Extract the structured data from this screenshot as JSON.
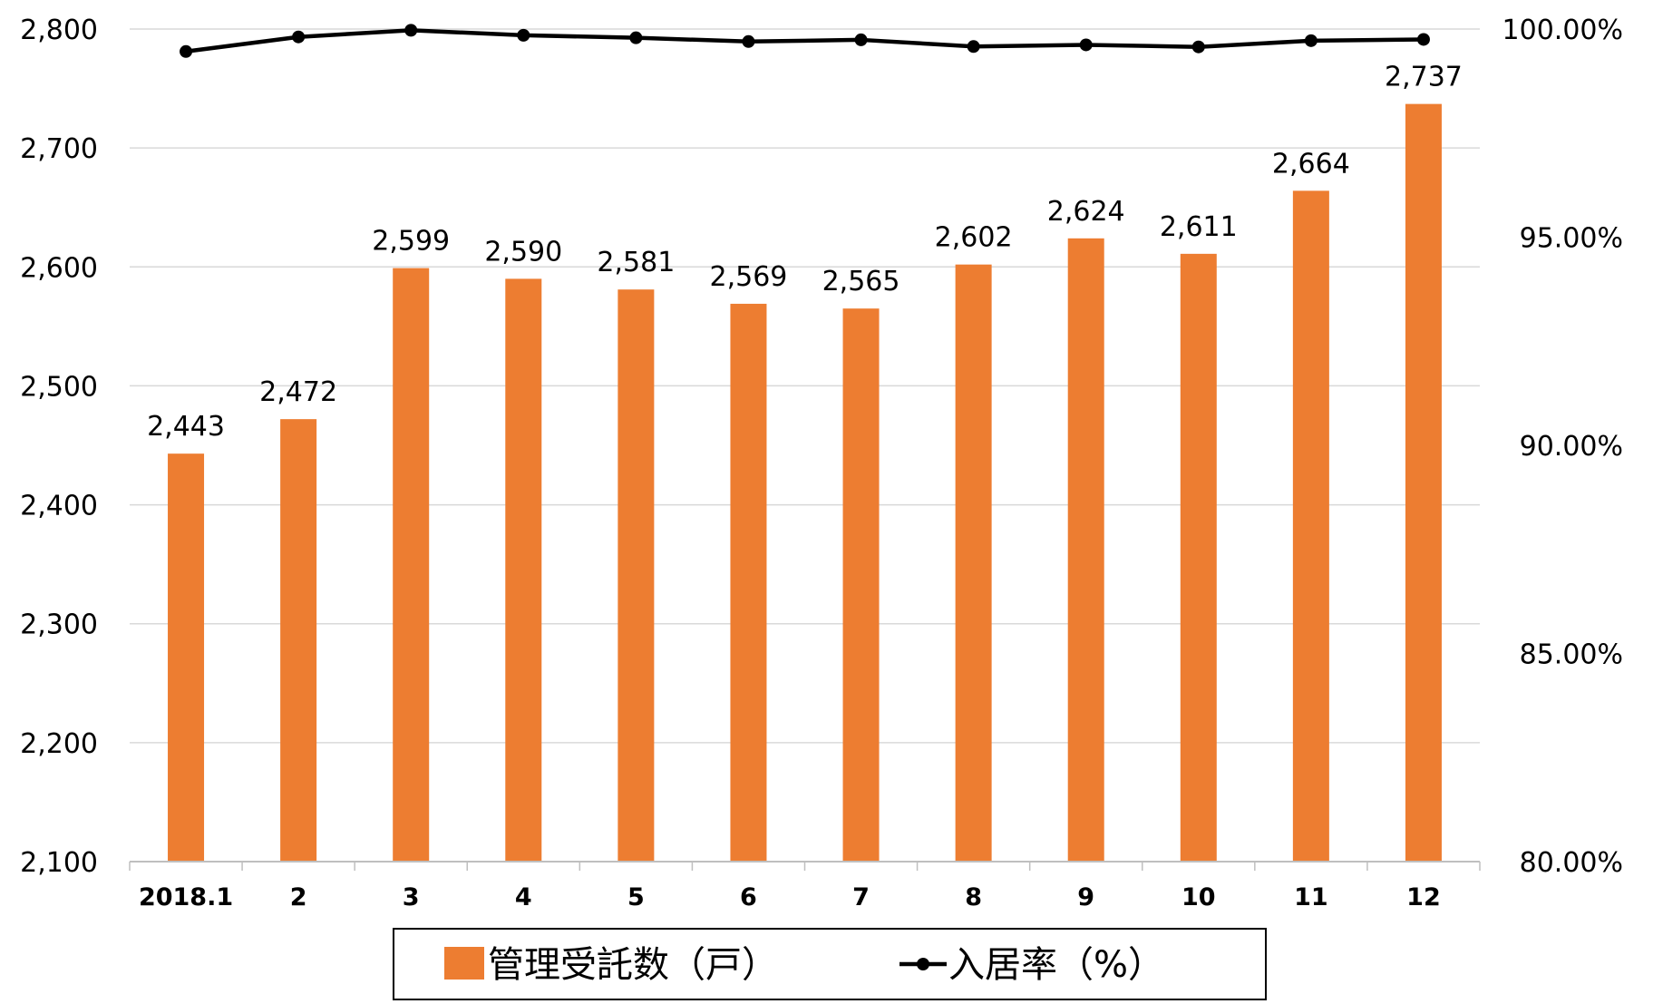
{
  "chart_data": {
    "type": "bar",
    "categories": [
      "2018.1",
      "2",
      "3",
      "4",
      "5",
      "6",
      "7",
      "8",
      "9",
      "10",
      "11",
      "12"
    ],
    "series": [
      {
        "name": "管理受託数（戸）",
        "type": "bar",
        "axis": "left",
        "values": [
          2443,
          2472,
          2599,
          2590,
          2581,
          2569,
          2565,
          2602,
          2624,
          2611,
          2664,
          2737
        ],
        "labels": [
          "2,443",
          "2,472",
          "2,599",
          "2,590",
          "2,581",
          "2,569",
          "2,565",
          "2,602",
          "2,624",
          "2,611",
          "2,664",
          "2,737"
        ]
      },
      {
        "name": "入居率（%）",
        "type": "line",
        "axis": "right",
        "values": [
          0.9946,
          0.9981,
          0.9997,
          0.9985,
          0.9979,
          0.997,
          0.9974,
          0.9958,
          0.9962,
          0.9957,
          0.9972,
          0.9975
        ]
      }
    ],
    "y_left": {
      "ylim": [
        2100,
        2800
      ],
      "ticks": [
        "2,100",
        "2,200",
        "2,300",
        "2,400",
        "2,500",
        "2,600",
        "2,700",
        "2,800"
      ]
    },
    "y_right": {
      "ylim": [
        0.8,
        1.0
      ],
      "ticks": [
        "80.00%",
        "85.00%",
        "90.00%",
        "95.00%",
        "100.00%"
      ]
    },
    "grid": true,
    "legend_position": "bottom",
    "colors": {
      "bar": "#ED7D31",
      "line": "#000000",
      "grid": "#D9D9D9",
      "axis": "#BFBFBF",
      "legend_border": "#000000"
    }
  }
}
